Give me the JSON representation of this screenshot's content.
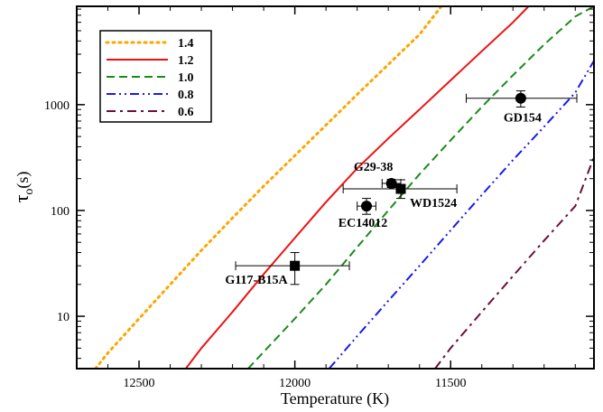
{
  "chart_data": {
    "type": "line",
    "xlabel": "Temperature (K)",
    "ylabel_main": "τ",
    "ylabel_sub": "o",
    "ylabel_suffix": "(s)",
    "x_reversed": true,
    "xlim": [
      12700,
      11040
    ],
    "ylim": [
      3.2,
      8500
    ],
    "y_scale": "log",
    "x_ticks": [
      12500,
      12000,
      11500
    ],
    "x_tick_labels": [
      "12500",
      "12000",
      "11500"
    ],
    "y_ticks": [
      10,
      100,
      1000
    ],
    "y_tick_labels": [
      "10",
      "100",
      "1000"
    ],
    "legend_placement": "top-left",
    "series": [
      {
        "name": "1.4",
        "color": "#ffa500",
        "dash": "dotted",
        "points": [
          [
            12640,
            3.2
          ],
          [
            12600,
            4.5
          ],
          [
            12500,
            9.5
          ],
          [
            12400,
            20
          ],
          [
            12300,
            42
          ],
          [
            12200,
            85
          ],
          [
            12100,
            170
          ],
          [
            12000,
            330
          ],
          [
            11900,
            640
          ],
          [
            11800,
            1250
          ],
          [
            11700,
            2400
          ],
          [
            11600,
            4600
          ],
          [
            11530,
            8500
          ]
        ]
      },
      {
        "name": "1.2",
        "color": "#ee1111",
        "dash": "solid",
        "points": [
          [
            12350,
            3.2
          ],
          [
            12300,
            5
          ],
          [
            12200,
            11
          ],
          [
            12100,
            25
          ],
          [
            12000,
            55
          ],
          [
            11900,
            120
          ],
          [
            11800,
            250
          ],
          [
            11700,
            480
          ],
          [
            11600,
            900
          ],
          [
            11500,
            1700
          ],
          [
            11400,
            3200
          ],
          [
            11300,
            6000
          ],
          [
            11250,
            8500
          ]
        ]
      },
      {
        "name": "1.0",
        "color": "#1a8a1a",
        "dash": "dashed",
        "points": [
          [
            12150,
            3.2
          ],
          [
            12100,
            4.6
          ],
          [
            12000,
            9.5
          ],
          [
            11900,
            20
          ],
          [
            11800,
            45
          ],
          [
            11700,
            100
          ],
          [
            11600,
            220
          ],
          [
            11500,
            460
          ],
          [
            11400,
            950
          ],
          [
            11300,
            1900
          ],
          [
            11200,
            3700
          ],
          [
            11100,
            6800
          ],
          [
            11040,
            8500
          ]
        ]
      },
      {
        "name": "0.8",
        "color": "#1a1aee",
        "dash": "dash-dot-dot",
        "points": [
          [
            11890,
            3.2
          ],
          [
            11800,
            6.5
          ],
          [
            11700,
            14
          ],
          [
            11600,
            30
          ],
          [
            11500,
            65
          ],
          [
            11400,
            140
          ],
          [
            11300,
            300
          ],
          [
            11200,
            620
          ],
          [
            11100,
            1300
          ],
          [
            11040,
            2600
          ]
        ]
      },
      {
        "name": "0.6",
        "color": "#6b0f3a",
        "dash": "dash-dot",
        "points": [
          [
            11550,
            3.2
          ],
          [
            11500,
            5
          ],
          [
            11400,
            11
          ],
          [
            11300,
            24
          ],
          [
            11200,
            52
          ],
          [
            11100,
            110
          ],
          [
            11040,
            320
          ]
        ]
      }
    ],
    "points": [
      {
        "name": "G117-B15A",
        "marker": "square",
        "x": 12000,
        "y": 30,
        "x_err": [
          12190,
          11825
        ],
        "y_err": [
          20,
          40
        ]
      },
      {
        "name": "EC14012",
        "marker": "circle",
        "x": 11770,
        "y": 110,
        "x_err": [
          11800,
          11740
        ],
        "y_err": [
          92,
          130
        ]
      },
      {
        "name": "G29-38",
        "marker": "circle",
        "x": 11690,
        "y": 180,
        "x_err": [
          11720,
          11660
        ],
        "y_err": [
          165,
          197
        ]
      },
      {
        "name": "WD1524",
        "marker": "square",
        "x": 11660,
        "y": 160,
        "x_err": [
          11845,
          11480
        ],
        "y_err": [
          130,
          195
        ]
      },
      {
        "name": "GD154",
        "marker": "circle",
        "x": 11275,
        "y": 1150,
        "x_err": [
          11450,
          11095
        ],
        "y_err": [
          950,
          1350
        ]
      }
    ]
  }
}
